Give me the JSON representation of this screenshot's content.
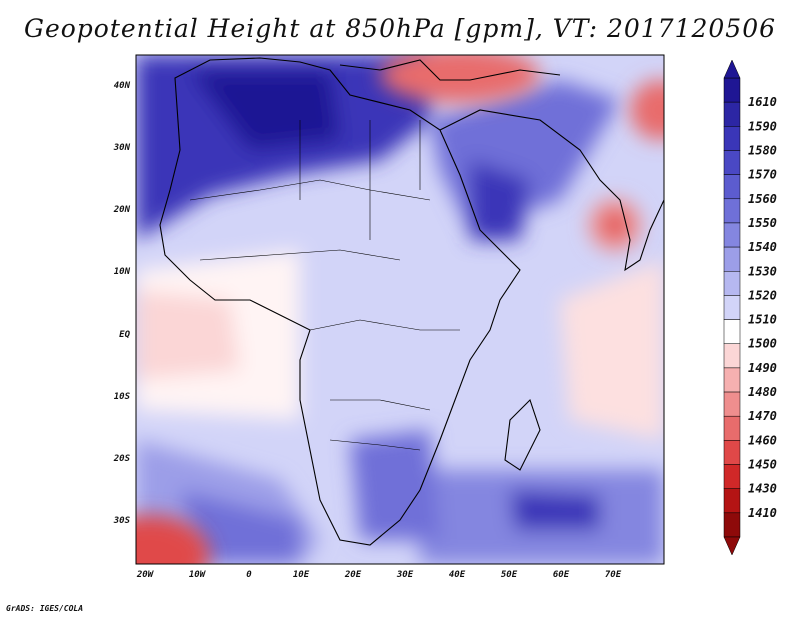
{
  "title": "Geopotential Height at 850hPa [gpm], VT: 2017120506",
  "credit": "GrADS: IGES/COLA",
  "map": {
    "lat_labels": [
      "40N",
      "30N",
      "20N",
      "10N",
      "EQ",
      "10S",
      "20S",
      "30S"
    ],
    "lon_labels": [
      "20W",
      "10W",
      "0",
      "10E",
      "20E",
      "30E",
      "40E",
      "50E",
      "60E",
      "70E"
    ]
  },
  "colorbar": {
    "levels": [
      "1610",
      "1590",
      "1580",
      "1570",
      "1560",
      "1550",
      "1540",
      "1530",
      "1520",
      "1510",
      "1500",
      "1490",
      "1480",
      "1470",
      "1460",
      "1450",
      "1430",
      "1410"
    ],
    "colors": [
      "#1f1694",
      "#2c26a4",
      "#3a36b8",
      "#4a48c4",
      "#5c5ccf",
      "#6f70d8",
      "#8486e0",
      "#9c9ee8",
      "#b6b8f0",
      "#d2d4f8",
      "#ffffff",
      "#fbd6d6",
      "#f6b0b0",
      "#ef8e8e",
      "#e86c6c",
      "#e04848",
      "#d02828",
      "#b41414",
      "#8e0a0a"
    ]
  },
  "legend_colors": {
    "ocean_tropics": "#fde0e0",
    "land": "#c8caf2",
    "north_high": "#3a36b8",
    "low": "#e04848"
  }
}
